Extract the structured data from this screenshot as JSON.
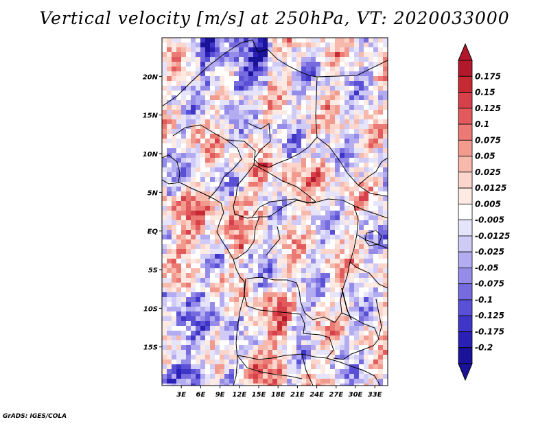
{
  "map": {
    "title": "Vertical velocity [m/s] at 250hPa, VT: 2020033000",
    "credit": "GrADS: IGES/COLA",
    "lat_labels": [
      "20N",
      "15N",
      "10N",
      "5N",
      "EQ",
      "5S",
      "10S",
      "15S"
    ],
    "lon_labels": [
      "3E",
      "6E",
      "9E",
      "12E",
      "15E",
      "18E",
      "21E",
      "24E",
      "27E",
      "30E",
      "33E"
    ],
    "lat_range": [
      -20,
      25
    ],
    "lon_range": [
      0,
      35
    ],
    "variable": "Vertical velocity",
    "units": "m/s",
    "level": "250hPa",
    "valid_time": "2020033000"
  },
  "colorbar": {
    "labels": [
      "0.175",
      "0.15",
      "0.125",
      "0.1",
      "0.075",
      "0.05",
      "0.025",
      "0.0125",
      "0.005",
      "-0.005",
      "-0.0125",
      "-0.025",
      "-0.05",
      "-0.075",
      "-0.1",
      "-0.125",
      "-0.175",
      "-0.2"
    ],
    "colors": [
      "#b2182b",
      "#c52a33",
      "#d6404a",
      "#e25a5c",
      "#ec7a74",
      "#f39a8f",
      "#f8b9ad",
      "#fcd6cc",
      "#fdeae3",
      "#ffffff",
      "#e6e4fb",
      "#cfcaf6",
      "#b3acf0",
      "#958ce9",
      "#766ce0",
      "#5a50d6",
      "#3f36c8",
      "#2a20b5",
      "#1a1299"
    ],
    "top_color": "#b2182b",
    "bottom_color": "#1a1299"
  }
}
